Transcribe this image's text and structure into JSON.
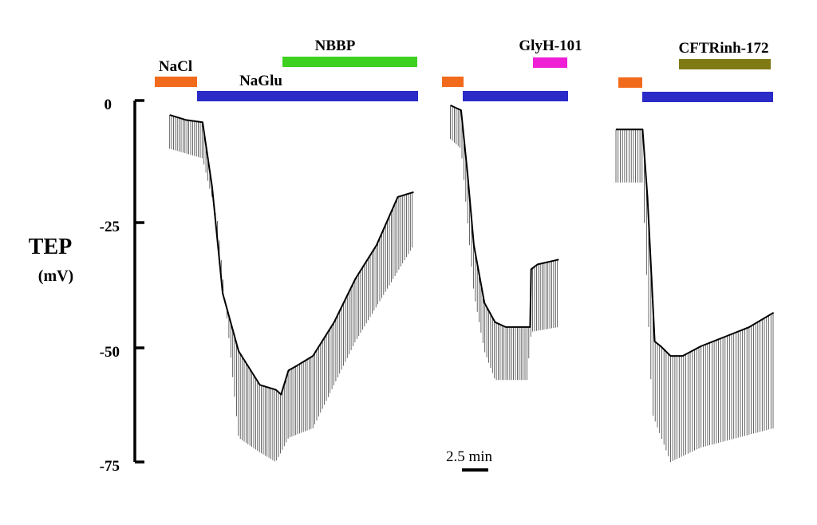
{
  "chart_data": {
    "type": "line",
    "ylabel": "TEP",
    "yunit": "(mV)",
    "ylim": [
      -75,
      0
    ],
    "yticks": [
      {
        "label": "0",
        "value": 0
      },
      {
        "label": "-25",
        "value": -25
      },
      {
        "label": "-50",
        "value": -50
      },
      {
        "label": "-75",
        "value": -75
      }
    ],
    "scale_bar_label": "2.5 min",
    "scale_bar_minutes": 2.5,
    "colors": {
      "NaCl": "#f26a1b",
      "NaGlu": "#2b2bc8",
      "NBBP": "#3ed11f",
      "GlyH-101": "#ee1fd4",
      "CFTRinh-172": "#7f7a14",
      "trace": "#000000"
    },
    "panels": [
      {
        "bars": [
          {
            "label": "NaCl",
            "color_key": "NaCl",
            "start_min": 0,
            "end_min": 3.6
          },
          {
            "label": "NaGlu",
            "color_key": "NaGlu",
            "start_min": 3.6,
            "end_min": 23.5
          },
          {
            "label": "NBBP",
            "color_key": "NBBP",
            "start_min": 11.0,
            "end_min": 23.5
          }
        ],
        "trace": [
          [
            0.5,
            -3
          ],
          [
            2.0,
            -4
          ],
          [
            3.6,
            -4.5
          ],
          [
            4.5,
            -18
          ],
          [
            5.5,
            -40
          ],
          [
            7.0,
            -52
          ],
          [
            9.0,
            -59
          ],
          [
            10.5,
            -60
          ],
          [
            11.0,
            -61
          ],
          [
            11.7,
            -56
          ],
          [
            12.5,
            -55
          ],
          [
            14,
            -53
          ],
          [
            16,
            -46
          ],
          [
            18,
            -37
          ],
          [
            20,
            -30
          ],
          [
            22,
            -20
          ],
          [
            23.5,
            -19
          ]
        ],
        "deflection_mV": [
          [
            0.5,
            -10
          ],
          [
            3.6,
            -12
          ],
          [
            5.0,
            -25
          ],
          [
            7.0,
            -70
          ],
          [
            9.0,
            -73
          ],
          [
            10.5,
            -75
          ],
          [
            11.0,
            -73
          ],
          [
            11.7,
            -70
          ],
          [
            14,
            -68
          ],
          [
            18,
            -50
          ],
          [
            23.5,
            -30
          ]
        ]
      },
      {
        "bars": [
          {
            "label": "NaCl",
            "color_key": "NaCl",
            "start_min": 0,
            "end_min": 1.8
          },
          {
            "label": "NaGlu",
            "color_key": "NaGlu",
            "start_min": 1.8,
            "end_min": 11.3
          },
          {
            "label": "GlyH-101",
            "color_key": "GlyH-101",
            "start_min": 8.0,
            "end_min": 11.0
          }
        ],
        "trace": [
          [
            0.8,
            -1
          ],
          [
            1.3,
            -1.5
          ],
          [
            1.8,
            -2
          ],
          [
            2.4,
            -15
          ],
          [
            3.0,
            -30
          ],
          [
            4.0,
            -42
          ],
          [
            5.0,
            -46
          ],
          [
            6.0,
            -47
          ],
          [
            8.0,
            -47
          ],
          [
            8.3,
            -47
          ],
          [
            8.4,
            -35
          ],
          [
            9.0,
            -34
          ],
          [
            11.0,
            -33
          ]
        ],
        "deflection_mV": [
          [
            0.8,
            -8
          ],
          [
            1.8,
            -10
          ],
          [
            3.0,
            -40
          ],
          [
            4.0,
            -52
          ],
          [
            5.0,
            -58
          ],
          [
            8.0,
            -58
          ],
          [
            8.4,
            -48
          ],
          [
            11.0,
            -47
          ]
        ]
      },
      {
        "bars": [
          {
            "label": "NaCl",
            "color_key": "NaCl",
            "start_min": 0,
            "end_min": 2.2
          },
          {
            "label": "NaGlu",
            "color_key": "NaGlu",
            "start_min": 2.2,
            "end_min": 13.3
          },
          {
            "label": "CFTRinh-172",
            "color_key": "CFTRinh-172",
            "start_min": 5.5,
            "end_min": 13.0
          }
        ],
        "trace": [
          [
            0,
            -6
          ],
          [
            1.5,
            -6
          ],
          [
            2.2,
            -6
          ],
          [
            2.6,
            -20
          ],
          [
            3.0,
            -40
          ],
          [
            3.2,
            -50
          ],
          [
            3.7,
            -51
          ],
          [
            4.5,
            -53
          ],
          [
            5.5,
            -53
          ],
          [
            7,
            -51
          ],
          [
            9,
            -49
          ],
          [
            11,
            -47
          ],
          [
            13,
            -44
          ]
        ],
        "deflection_mV": [
          [
            0,
            -17
          ],
          [
            2.2,
            -17
          ],
          [
            3.0,
            -65
          ],
          [
            4.5,
            -75
          ],
          [
            7,
            -72
          ],
          [
            13,
            -68
          ]
        ]
      }
    ]
  }
}
